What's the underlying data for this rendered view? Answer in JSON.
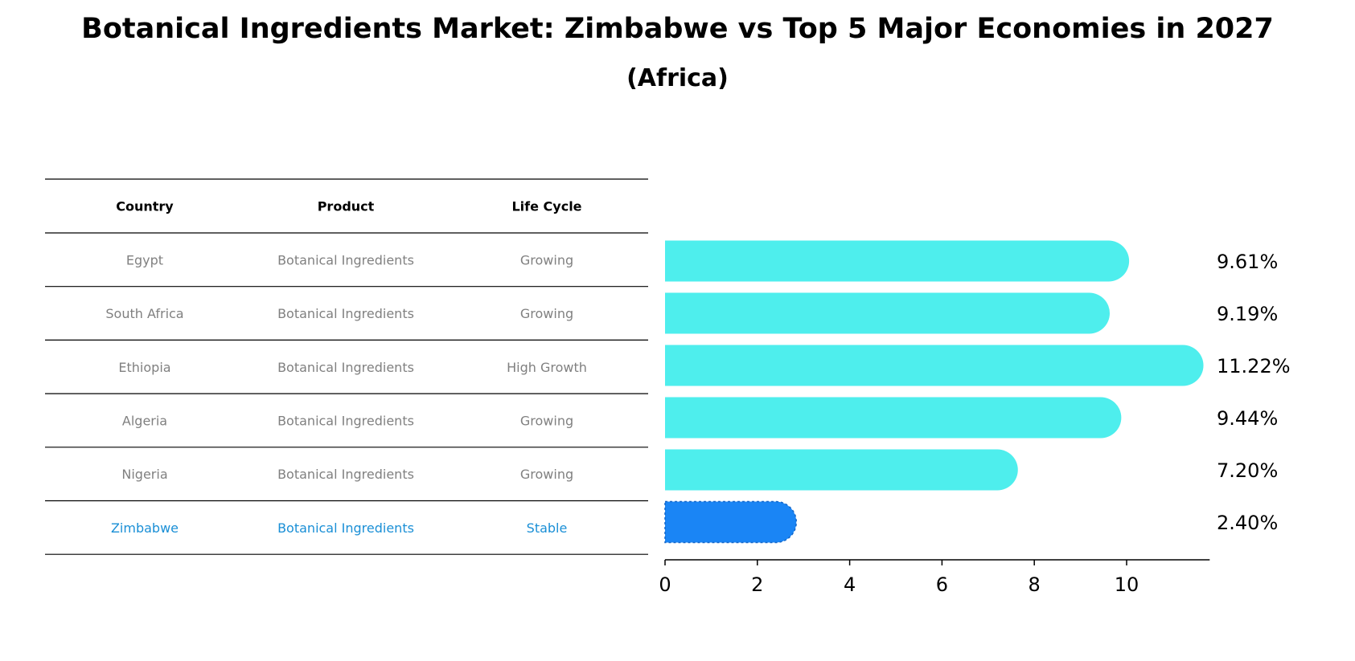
{
  "title": "Botanical Ingredients Market: Zimbabwe vs Top 5 Major Economies in 2027",
  "subtitle": "(Africa)",
  "colors": {
    "highlight_text": "#1a8fd6",
    "highlight_bar": "#1a85f5",
    "bar": "#4eeeed",
    "muted_text": "#808080"
  },
  "table": {
    "headers": [
      "Country",
      "Product",
      "Life Cycle"
    ],
    "rows": [
      [
        "Egypt",
        "Botanical Ingredients",
        "Growing"
      ],
      [
        "South Africa",
        "Botanical Ingredients",
        "Growing"
      ],
      [
        "Ethiopia",
        "Botanical Ingredients",
        "High Growth"
      ],
      [
        "Algeria",
        "Botanical Ingredients",
        "Growing"
      ],
      [
        "Nigeria",
        "Botanical Ingredients",
        "Growing"
      ],
      [
        "Zimbabwe",
        "Botanical Ingredients",
        "Stable"
      ]
    ],
    "highlight_row": 5
  },
  "chart_data": {
    "type": "bar",
    "orientation": "horizontal",
    "categories": [
      "Egypt",
      "South Africa",
      "Ethiopia",
      "Algeria",
      "Nigeria",
      "Zimbabwe"
    ],
    "values": [
      9.61,
      9.19,
      11.22,
      9.44,
      7.2,
      2.4
    ],
    "value_labels": [
      "9.61%",
      "9.19%",
      "11.22%",
      "9.44%",
      "7.20%",
      "2.40%"
    ],
    "highlight": "Zimbabwe",
    "xlim": [
      0,
      11.8
    ],
    "xticks": [
      0,
      2,
      4,
      6,
      8,
      10
    ],
    "grid": false
  }
}
